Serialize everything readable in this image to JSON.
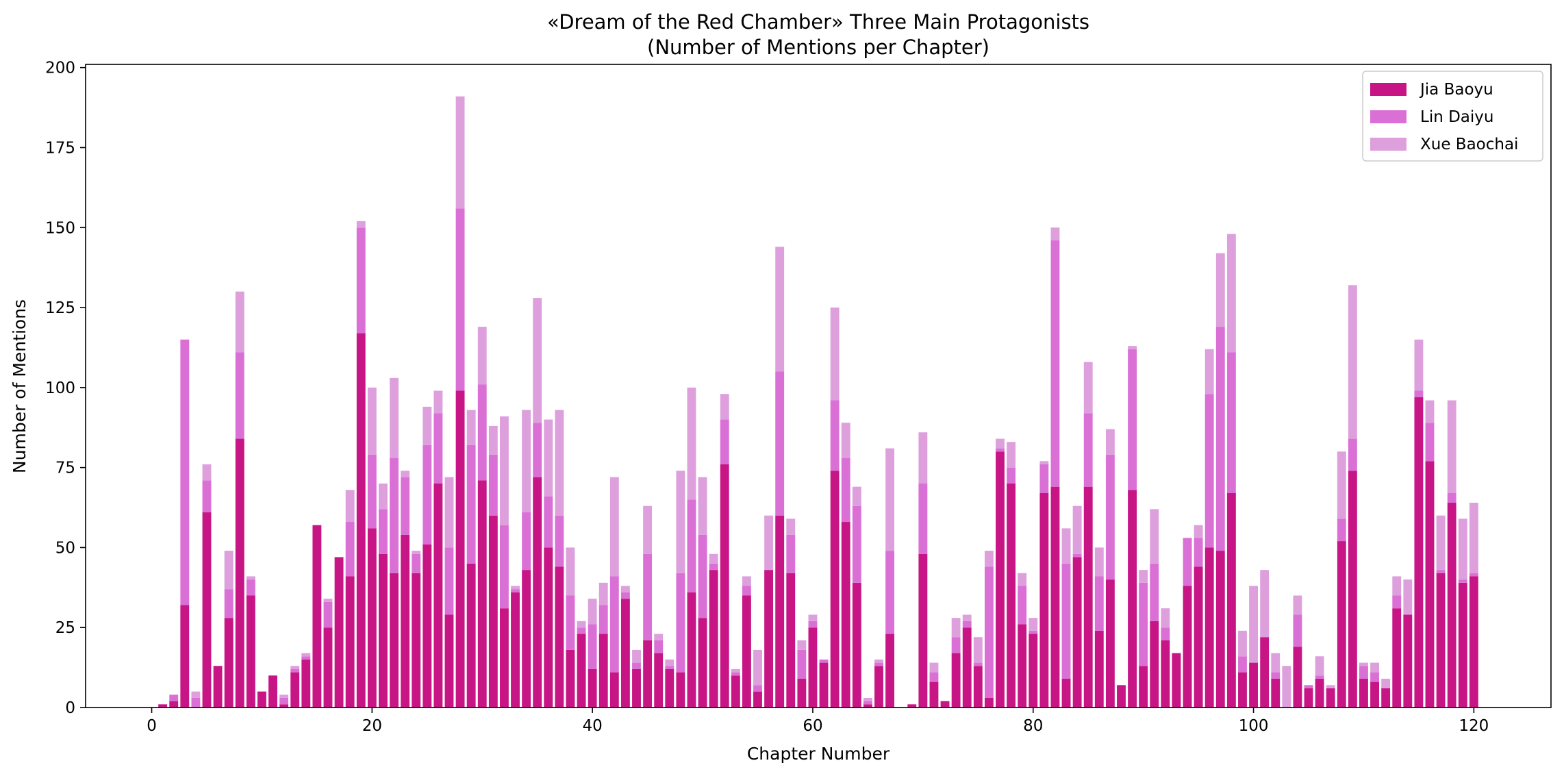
{
  "chart_data": {
    "type": "bar",
    "stacked": true,
    "title_lines": [
      "«Dream of the Red Chamber» Three Main Protagonists",
      "(Number of Mentions per Chapter)"
    ],
    "xlabel": "Chapter Number",
    "ylabel": "Number of Mentions",
    "xlim": [
      -6,
      127
    ],
    "ylim": [
      0,
      201
    ],
    "xticks": [
      0,
      20,
      40,
      60,
      80,
      100,
      120
    ],
    "yticks": [
      0,
      25,
      50,
      75,
      100,
      125,
      150,
      175,
      200
    ],
    "grid": false,
    "legend_position": "top-right",
    "x": [
      1,
      2,
      3,
      4,
      5,
      6,
      7,
      8,
      9,
      10,
      11,
      12,
      13,
      14,
      15,
      16,
      17,
      18,
      19,
      20,
      21,
      22,
      23,
      24,
      25,
      26,
      27,
      28,
      29,
      30,
      31,
      32,
      33,
      34,
      35,
      36,
      37,
      38,
      39,
      40,
      41,
      42,
      43,
      44,
      45,
      46,
      47,
      48,
      49,
      50,
      51,
      52,
      53,
      54,
      55,
      56,
      57,
      58,
      59,
      60,
      61,
      62,
      63,
      64,
      65,
      66,
      67,
      68,
      69,
      70,
      71,
      72,
      73,
      74,
      75,
      76,
      77,
      78,
      79,
      80,
      81,
      82,
      83,
      84,
      85,
      86,
      87,
      88,
      89,
      90,
      91,
      92,
      93,
      94,
      95,
      96,
      97,
      98,
      99,
      100,
      101,
      102,
      103,
      104,
      105,
      106,
      107,
      108,
      109,
      110,
      111,
      112,
      113,
      114,
      115,
      116,
      117,
      118,
      119,
      120
    ],
    "series": [
      {
        "name": "Jia Baoyu",
        "color": "#c71585",
        "values": [
          1,
          2,
          32,
          0,
          61,
          13,
          28,
          84,
          35,
          5,
          10,
          1,
          11,
          15,
          57,
          25,
          47,
          41,
          117,
          56,
          48,
          42,
          54,
          42,
          51,
          70,
          29,
          99,
          45,
          71,
          60,
          31,
          36,
          43,
          72,
          50,
          44,
          18,
          23,
          12,
          23,
          11,
          34,
          12,
          21,
          17,
          12,
          11,
          36,
          28,
          43,
          76,
          10,
          35,
          5,
          43,
          60,
          42,
          9,
          25,
          14,
          74,
          58,
          39,
          1,
          13,
          23,
          0,
          1,
          48,
          8,
          2,
          17,
          25,
          13,
          3,
          80,
          70,
          26,
          23,
          67,
          69,
          9,
          47,
          69,
          24,
          40,
          7,
          68,
          13,
          27,
          21,
          17,
          38,
          44,
          50,
          49,
          67,
          11,
          14,
          22,
          9,
          0,
          19,
          6,
          9,
          6,
          52,
          74,
          9,
          8,
          6,
          31,
          29,
          97,
          77,
          42,
          64,
          39,
          41
        ]
      },
      {
        "name": "Lin Daiyu",
        "color": "#da70d6",
        "values": [
          0,
          2,
          83,
          3,
          10,
          0,
          9,
          27,
          5,
          0,
          0,
          2,
          1,
          1,
          0,
          8,
          0,
          17,
          33,
          23,
          14,
          36,
          18,
          6,
          31,
          22,
          21,
          57,
          37,
          30,
          19,
          26,
          1,
          18,
          17,
          16,
          16,
          17,
          2,
          14,
          9,
          30,
          2,
          2,
          27,
          4,
          1,
          31,
          29,
          26,
          2,
          14,
          1,
          3,
          2,
          0,
          45,
          12,
          9,
          2,
          1,
          22,
          20,
          24,
          1,
          1,
          26,
          0,
          0,
          22,
          3,
          0,
          5,
          2,
          1,
          41,
          1,
          5,
          12,
          1,
          9,
          77,
          36,
          1,
          23,
          17,
          39,
          0,
          44,
          26,
          18,
          4,
          0,
          15,
          9,
          48,
          70,
          44,
          5,
          0,
          0,
          2,
          0,
          10,
          1,
          1,
          0,
          7,
          10,
          4,
          3,
          0,
          4,
          0,
          2,
          12,
          1,
          3,
          1,
          1
        ]
      },
      {
        "name": "Xue Baochai",
        "color": "#dda0dd",
        "values": [
          0,
          0,
          0,
          2,
          5,
          0,
          12,
          19,
          1,
          0,
          0,
          1,
          1,
          1,
          0,
          1,
          0,
          10,
          2,
          21,
          8,
          25,
          2,
          1,
          12,
          7,
          22,
          35,
          11,
          18,
          9,
          34,
          1,
          32,
          39,
          24,
          33,
          15,
          2,
          8,
          7,
          31,
          2,
          4,
          15,
          2,
          2,
          32,
          35,
          18,
          3,
          8,
          1,
          3,
          11,
          17,
          39,
          5,
          3,
          2,
          0,
          29,
          11,
          6,
          1,
          1,
          32,
          0,
          0,
          16,
          3,
          0,
          6,
          2,
          8,
          5,
          3,
          8,
          4,
          4,
          1,
          4,
          11,
          15,
          16,
          9,
          8,
          0,
          1,
          4,
          17,
          6,
          0,
          0,
          4,
          14,
          23,
          37,
          8,
          24,
          21,
          6,
          13,
          6,
          0,
          6,
          1,
          21,
          48,
          1,
          3,
          3,
          6,
          11,
          16,
          7,
          17,
          29,
          19,
          22
        ]
      }
    ]
  }
}
